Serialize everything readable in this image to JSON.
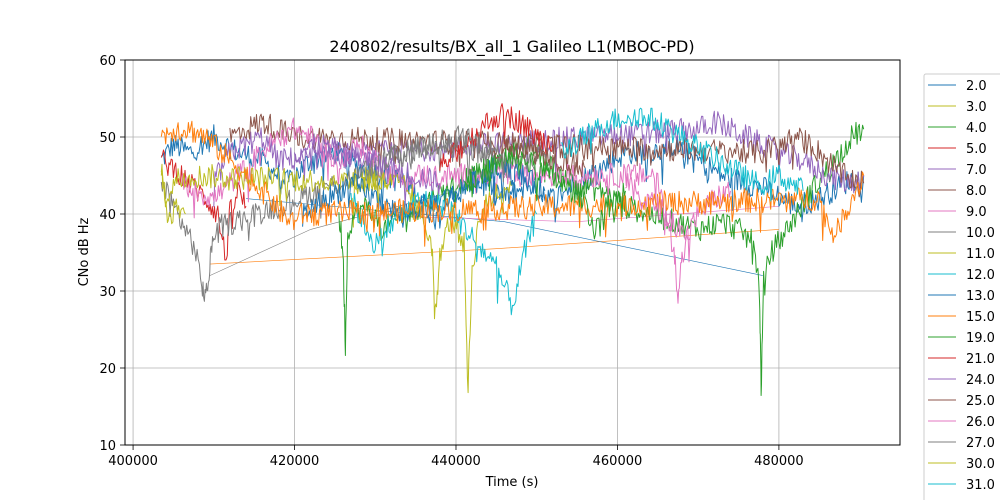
{
  "chart_data": {
    "type": "line",
    "title": "240802/results/BX_all_1 Galileo L1(MBOC-PD)",
    "xlabel": "Time (s)",
    "ylabel": "CNo dB Hz",
    "xlim": [
      399000,
      495000
    ],
    "ylim": [
      10,
      60
    ],
    "x_ticks": [
      400000,
      420000,
      440000,
      460000,
      480000
    ],
    "y_ticks": [
      10,
      20,
      30,
      40,
      50,
      60
    ],
    "grid": true,
    "legend_placement": "right-outside",
    "series": [
      {
        "name": "2.0",
        "color": "#1f77b4",
        "points": [
          [
            403500,
            47
          ],
          [
            405000,
            49
          ],
          [
            407000,
            48
          ],
          [
            410000,
            50
          ],
          [
            413000,
            48
          ],
          [
            416000,
            47
          ],
          [
            419000,
            44
          ],
          [
            422000,
            47
          ],
          [
            425000,
            48
          ],
          [
            428000,
            46
          ],
          [
            431000,
            45
          ],
          [
            434000,
            44
          ],
          [
            437000,
            40
          ],
          [
            440000,
            43
          ],
          [
            443000,
            45
          ],
          [
            446000,
            42
          ],
          [
            449000,
            44
          ],
          [
            452000,
            42
          ],
          [
            455000,
            44
          ],
          [
            458000,
            46
          ],
          [
            461000,
            48
          ],
          [
            464000,
            48
          ],
          [
            467000,
            49
          ],
          [
            470000,
            47
          ],
          [
            473000,
            45
          ],
          [
            476000,
            44
          ],
          [
            479000,
            43
          ],
          [
            482000,
            41
          ],
          [
            485000,
            42
          ],
          [
            488000,
            44
          ],
          [
            490500,
            45
          ]
        ]
      },
      {
        "name": "3.0",
        "color": "#bcbd22",
        "points": [
          [
            427000,
            42
          ],
          [
            428000,
            44
          ],
          [
            429500,
            45
          ],
          [
            430500,
            44
          ],
          [
            432000,
            45
          ]
        ]
      },
      {
        "name": "4.0",
        "color": "#2ca02c",
        "points": [
          [
            425500,
            40
          ],
          [
            426000,
            35
          ],
          [
            426300,
            23
          ],
          [
            426600,
            38
          ],
          [
            427500,
            40
          ],
          [
            429000,
            41
          ],
          [
            431000,
            38
          ],
          [
            434000,
            40
          ],
          [
            437000,
            42
          ],
          [
            440000,
            44
          ],
          [
            443000,
            45
          ],
          [
            446000,
            47
          ],
          [
            449000,
            49
          ],
          [
            452000,
            46
          ],
          [
            455000,
            44
          ],
          [
            458000,
            43
          ],
          [
            461000,
            41
          ],
          [
            464000,
            40
          ],
          [
            467000,
            39
          ],
          [
            470000,
            38
          ],
          [
            473000,
            39
          ],
          [
            475000,
            38
          ],
          [
            477000,
            36
          ],
          [
            477600,
            30
          ],
          [
            477800,
            17
          ],
          [
            478100,
            31
          ],
          [
            479000,
            35
          ],
          [
            481000,
            38
          ],
          [
            484000,
            43
          ],
          [
            487000,
            47
          ],
          [
            489000,
            50
          ],
          [
            490500,
            51
          ]
        ]
      },
      {
        "name": "5.0",
        "color": "#d62728",
        "points": [
          [
            403500,
            47
          ],
          [
            405000,
            46
          ],
          [
            407000,
            44
          ],
          [
            409000,
            42
          ],
          [
            410500,
            40
          ],
          [
            411500,
            34
          ],
          [
            412000,
            40
          ],
          [
            413000,
            43
          ],
          [
            414000,
            41
          ]
        ]
      },
      {
        "name": "7.0",
        "color": "#9467bd",
        "points": [
          [
            410000,
            44
          ],
          [
            412000,
            48
          ],
          [
            414000,
            49
          ],
          [
            416000,
            50
          ],
          [
            418000,
            47
          ],
          [
            470000,
            51
          ],
          [
            472000,
            52
          ],
          [
            474000,
            51
          ],
          [
            476000,
            50
          ],
          [
            478000,
            49
          ],
          [
            480000,
            48
          ],
          [
            483000,
            47
          ],
          [
            486000,
            45
          ],
          [
            489000,
            44
          ],
          [
            490500,
            45
          ]
        ]
      },
      {
        "name": "8.0",
        "color": "#8c564b",
        "points": [
          [
            412000,
            50
          ],
          [
            414000,
            51
          ],
          [
            416000,
            52
          ],
          [
            418000,
            51
          ],
          [
            420000,
            50
          ],
          [
            478000,
            48
          ],
          [
            480000,
            49
          ],
          [
            482000,
            50
          ],
          [
            484000,
            49
          ],
          [
            486000,
            47
          ],
          [
            488000,
            45
          ],
          [
            490500,
            44
          ]
        ]
      },
      {
        "name": "9.0",
        "color": "#e377c2",
        "points": [
          [
            406000,
            44
          ],
          [
            408000,
            43
          ],
          [
            410000,
            42
          ],
          [
            412000,
            44
          ],
          [
            414000,
            46
          ],
          [
            416000,
            48
          ],
          [
            418000,
            50
          ],
          [
            420000,
            51
          ],
          [
            422000,
            50
          ],
          [
            424000,
            48
          ],
          [
            426000,
            47
          ],
          [
            428000,
            49
          ],
          [
            430000,
            47
          ],
          [
            432000,
            45
          ],
          [
            465000,
            45
          ],
          [
            466000,
            40
          ],
          [
            467000,
            35
          ],
          [
            467500,
            30
          ],
          [
            468000,
            34
          ],
          [
            469000,
            38
          ],
          [
            470000,
            40
          ],
          [
            472000,
            42
          ],
          [
            474000,
            43
          ]
        ]
      },
      {
        "name": "10.0",
        "color": "#7f7f7f",
        "points": [
          [
            403500,
            44
          ],
          [
            405000,
            41
          ],
          [
            406500,
            38
          ],
          [
            407500,
            36
          ],
          [
            408500,
            31
          ],
          [
            409000,
            29
          ],
          [
            409500,
            33
          ],
          [
            410000,
            38
          ],
          [
            428000,
            45
          ],
          [
            431000,
            47
          ],
          [
            434000,
            48
          ],
          [
            437000,
            49
          ],
          [
            440000,
            49
          ],
          [
            443000,
            48
          ],
          [
            446000,
            46
          ],
          [
            449000,
            47
          ],
          [
            452000,
            48
          ]
        ]
      },
      {
        "name": "11.0",
        "color": "#bcbd22",
        "points": [
          [
            403500,
            46
          ],
          [
            404000,
            42
          ],
          [
            405000,
            44
          ],
          [
            406000,
            45
          ],
          [
            433000,
            44
          ],
          [
            435000,
            42
          ],
          [
            437000,
            36
          ],
          [
            437500,
            27
          ],
          [
            438000,
            35
          ],
          [
            439500,
            40
          ],
          [
            441000,
            36
          ],
          [
            441500,
            17
          ],
          [
            442000,
            33
          ],
          [
            443000,
            40
          ],
          [
            445000,
            43
          ],
          [
            447000,
            44
          ]
        ]
      },
      {
        "name": "12.0",
        "color": "#17becf",
        "points": [
          [
            427000,
            42
          ],
          [
            430000,
            36
          ],
          [
            433000,
            40
          ],
          [
            436000,
            42
          ],
          [
            439000,
            41
          ],
          [
            442000,
            37
          ],
          [
            445000,
            33
          ],
          [
            447000,
            28
          ],
          [
            448500,
            35
          ],
          [
            450000,
            40
          ]
        ]
      },
      {
        "name": "13.0",
        "color": "#1f77b4",
        "points": [
          [
            421000,
            40
          ],
          [
            424000,
            42
          ],
          [
            427000,
            44
          ],
          [
            430000,
            42
          ],
          [
            433000,
            40
          ],
          [
            436000,
            41
          ],
          [
            439000,
            42
          ],
          [
            442000,
            44
          ],
          [
            445000,
            46
          ],
          [
            448000,
            45
          ],
          [
            451000,
            43
          ]
        ]
      },
      {
        "name": "15.0",
        "color": "#ff7f0e",
        "points": [
          [
            403500,
            50
          ],
          [
            405000,
            51
          ],
          [
            407000,
            51
          ],
          [
            409000,
            50
          ],
          [
            411000,
            48
          ],
          [
            413000,
            46
          ],
          [
            415000,
            44
          ],
          [
            417000,
            42
          ],
          [
            418500,
            40
          ],
          [
            419500,
            39
          ],
          [
            421000,
            40
          ],
          [
            485000,
            42
          ],
          [
            486000,
            39
          ],
          [
            487000,
            37
          ],
          [
            488000,
            40
          ],
          [
            489500,
            43
          ],
          [
            490500,
            45
          ]
        ]
      },
      {
        "name": "19.0",
        "color": "#2ca02c",
        "points": [
          [
            441000,
            44
          ],
          [
            444000,
            46
          ],
          [
            447000,
            48
          ],
          [
            450000,
            46
          ],
          [
            453000,
            44
          ],
          [
            456000,
            42
          ],
          [
            457000,
            38
          ],
          [
            458000,
            40
          ],
          [
            461000,
            43
          ]
        ]
      },
      {
        "name": "21.0",
        "color": "#d62728",
        "points": [
          [
            438000,
            46
          ],
          [
            440000,
            48
          ],
          [
            442000,
            50
          ],
          [
            444000,
            52
          ],
          [
            446000,
            53
          ],
          [
            448000,
            52
          ],
          [
            450000,
            50
          ],
          [
            452000,
            49
          ]
        ]
      },
      {
        "name": "24.0",
        "color": "#9467bd",
        "points": [
          [
            420000,
            48
          ],
          [
            423000,
            49
          ],
          [
            426000,
            48
          ],
          [
            429000,
            47
          ],
          [
            432000,
            46
          ],
          [
            435000,
            45
          ],
          [
            438000,
            44
          ]
        ]
      },
      {
        "name": "25.0",
        "color": "#8c564b",
        "points": [
          [
            444000,
            48
          ],
          [
            447000,
            49
          ],
          [
            450000,
            48
          ],
          [
            453000,
            47
          ],
          [
            456000,
            46
          ]
        ]
      },
      {
        "name": "26.0",
        "color": "#e377c2",
        "points": [
          [
            461000,
            44
          ],
          [
            463000,
            42
          ],
          [
            465000,
            41
          ],
          [
            467000,
            39
          ],
          [
            469000,
            37
          ]
        ]
      },
      {
        "name": "27.0",
        "color": "#7f7f7f",
        "points": [
          [
            431000,
            47
          ],
          [
            434000,
            48
          ],
          [
            437000,
            49
          ],
          [
            440000,
            50
          ],
          [
            443000,
            49
          ],
          [
            446000,
            48
          ]
        ]
      },
      {
        "name": "30.0",
        "color": "#bcbd22",
        "points": [
          [
            403500,
            46
          ],
          [
            404000,
            42
          ],
          [
            404500,
            39
          ],
          [
            405500,
            41
          ],
          [
            406500,
            40
          ]
        ]
      },
      {
        "name": "31.0",
        "color": "#17becf",
        "points": [
          [
            453000,
            48
          ],
          [
            456000,
            50
          ],
          [
            459000,
            52
          ],
          [
            462000,
            53
          ],
          [
            465000,
            52
          ],
          [
            468000,
            50
          ],
          [
            471000,
            48
          ],
          [
            474000,
            46
          ],
          [
            477000,
            44
          ],
          [
            480000,
            45
          ],
          [
            483000,
            43
          ]
        ]
      }
    ],
    "connectors": [
      {
        "color": "#ff7f0e",
        "points": [
          [
            409500,
            33.5
          ],
          [
            445000,
            35.5
          ],
          [
            480000,
            38
          ]
        ]
      },
      {
        "color": "#7f7f7f",
        "points": [
          [
            409500,
            32
          ],
          [
            422000,
            38
          ],
          [
            440000,
            43
          ]
        ]
      },
      {
        "color": "#1f77b4",
        "points": [
          [
            414000,
            42
          ],
          [
            446000,
            39
          ],
          [
            478000,
            32
          ]
        ]
      },
      {
        "color": "#e377c2",
        "points": [
          [
            423000,
            40
          ],
          [
            455000,
            39
          ],
          [
            480000,
            41
          ]
        ]
      }
    ]
  }
}
